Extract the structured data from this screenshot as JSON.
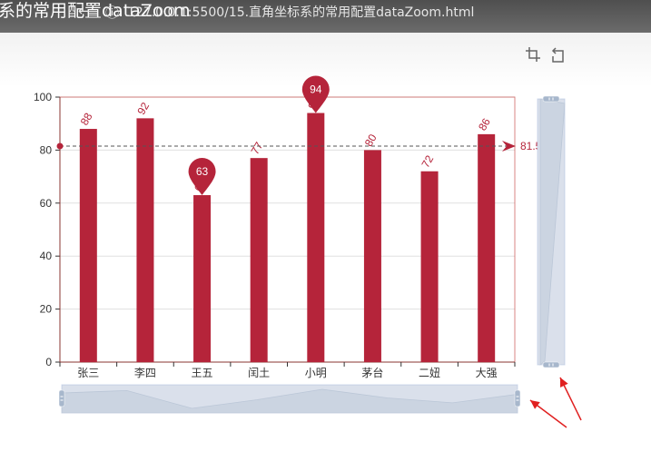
{
  "browser": {
    "title_overlay": "系的常用配置dataZoom",
    "url": "127.0.0.1:5500/15.直角坐标系的常用配置dataZoom.html"
  },
  "toolbox": {
    "icons": [
      "data-zoom-icon",
      "zoom-reset-icon"
    ]
  },
  "chart_data": {
    "type": "bar",
    "categories": [
      "张三",
      "李四",
      "王五",
      "闰土",
      "小明",
      "茅台",
      "二妞",
      "大强"
    ],
    "values": [
      88,
      92,
      63,
      77,
      94,
      80,
      72,
      86
    ],
    "ylim": [
      0,
      100
    ],
    "yticks": [
      0,
      20,
      40,
      60,
      80,
      100
    ],
    "grid": true,
    "bar_color": "#b5243a",
    "mark_point": {
      "max": {
        "category": "小明",
        "value": 94
      },
      "min": {
        "category": "王五",
        "value": 63
      }
    },
    "mark_line": {
      "type": "average",
      "value": 81.5,
      "label": "81.5"
    },
    "data_zoom": {
      "x_slider": {
        "start": 0,
        "end": 100
      },
      "y_slider": {
        "start": 0,
        "end": 100
      }
    },
    "x_slider_shadow_values": [
      88,
      92,
      63,
      77,
      94,
      80,
      72,
      86
    ],
    "y_slider_shadow_values": [
      88,
      92,
      63,
      77,
      94,
      80,
      72,
      86
    ],
    "annotation_color": "#e02020"
  }
}
